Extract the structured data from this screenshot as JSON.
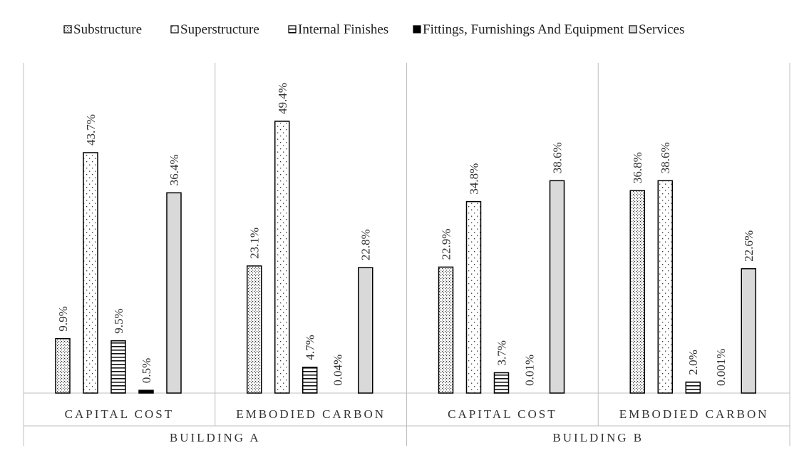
{
  "chart_data": {
    "type": "bar",
    "groups": [
      {
        "label": "BUILDING A",
        "categories": [
          "CAPITAL COST",
          "EMBODIED CARBON"
        ]
      },
      {
        "label": "BUILDING B",
        "categories": [
          "CAPITAL COST",
          "EMBODIED CARBON"
        ]
      }
    ],
    "categories": [
      "CAPITAL COST",
      "EMBODIED CARBON",
      "CAPITAL COST",
      "EMBODIED CARBON"
    ],
    "series": [
      {
        "name": "Substructure",
        "values": [
          9.9,
          23.1,
          22.9,
          36.8
        ],
        "labels": [
          "9.9%",
          "23.1%",
          "22.9%",
          "36.8%"
        ],
        "pattern": "crosshatch-dots"
      },
      {
        "name": "Superstructure",
        "values": [
          43.7,
          49.4,
          34.8,
          38.6
        ],
        "labels": [
          "43.7%",
          "49.4%",
          "34.8%",
          "38.6%"
        ],
        "pattern": "sparse-dots"
      },
      {
        "name": "Internal Finishes",
        "values": [
          9.5,
          4.7,
          3.7,
          2.0
        ],
        "labels": [
          "9.5%",
          "4.7%",
          "3.7%",
          "2.0%"
        ],
        "pattern": "horizontal-lines"
      },
      {
        "name": "Fittings, Furnishings And Equipment",
        "values": [
          0.5,
          0.04,
          0.01,
          0.001
        ],
        "labels": [
          "0.5%",
          "0.04%",
          "0.01%",
          "0.001%"
        ],
        "pattern": "solid-black"
      },
      {
        "name": "Services",
        "values": [
          36.4,
          22.8,
          38.6,
          22.6
        ],
        "labels": [
          "36.4%",
          "22.8%",
          "38.6%",
          "22.6%"
        ],
        "pattern": "solid-grey"
      }
    ],
    "ylim": [
      0,
      55
    ],
    "grid": false,
    "legend": "top"
  },
  "colors": {
    "solid_grey": "#d9d9d9",
    "black": "#000000",
    "axis": "#bfbfbf"
  }
}
